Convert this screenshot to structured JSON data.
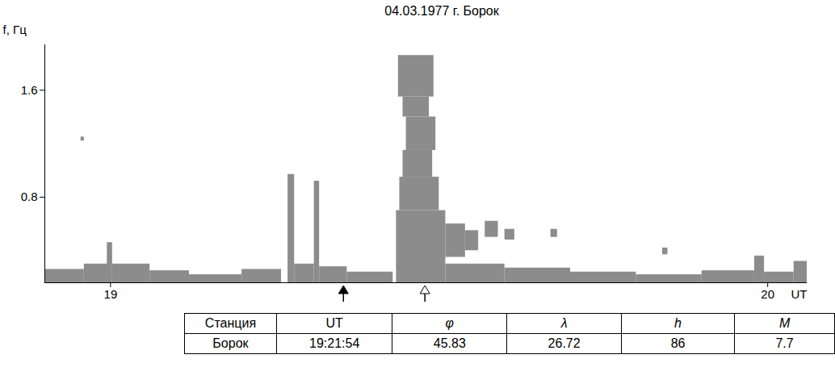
{
  "chart_data": {
    "type": "spectrogram",
    "title": "04.03.1977 г. Борок",
    "y_label": "f, Гц",
    "x_label": "UT",
    "xlim": [
      18.9,
      20.06
    ],
    "xticks": [
      19,
      20
    ],
    "ylim": [
      0.16,
      1.94
    ],
    "yticks": [
      0.8,
      1.6
    ],
    "color": "#8c8c8c",
    "cells": [
      [
        18.9,
        18.96,
        0.16,
        0.26
      ],
      [
        18.96,
        19.0,
        0.16,
        0.3
      ],
      [
        18.995,
        19.003,
        0.16,
        0.46
      ],
      [
        19.003,
        19.06,
        0.16,
        0.3
      ],
      [
        19.06,
        19.12,
        0.16,
        0.25
      ],
      [
        19.12,
        19.2,
        0.16,
        0.22
      ],
      [
        19.2,
        19.26,
        0.16,
        0.26
      ],
      [
        19.27,
        19.28,
        0.16,
        0.97
      ],
      [
        19.28,
        19.31,
        0.16,
        0.3
      ],
      [
        19.31,
        19.318,
        0.16,
        0.92
      ],
      [
        19.318,
        19.36,
        0.16,
        0.28
      ],
      [
        19.36,
        19.43,
        0.16,
        0.24
      ],
      [
        19.438,
        19.492,
        1.55,
        1.86
      ],
      [
        19.445,
        19.485,
        1.4,
        1.55
      ],
      [
        19.45,
        19.495,
        1.15,
        1.4
      ],
      [
        19.445,
        19.49,
        0.95,
        1.15
      ],
      [
        19.44,
        19.5,
        0.7,
        0.95
      ],
      [
        19.435,
        19.51,
        0.16,
        0.7
      ],
      [
        19.51,
        19.54,
        0.35,
        0.6
      ],
      [
        19.54,
        19.56,
        0.4,
        0.55
      ],
      [
        19.57,
        19.59,
        0.5,
        0.62
      ],
      [
        19.6,
        19.615,
        0.48,
        0.56
      ],
      [
        19.51,
        19.6,
        0.16,
        0.3
      ],
      [
        19.6,
        19.7,
        0.16,
        0.27
      ],
      [
        19.67,
        19.68,
        0.5,
        0.56
      ],
      [
        19.7,
        19.8,
        0.16,
        0.24
      ],
      [
        19.8,
        19.9,
        0.16,
        0.22
      ],
      [
        19.84,
        19.848,
        0.37,
        0.42
      ],
      [
        19.9,
        19.98,
        0.16,
        0.25
      ],
      [
        19.98,
        19.995,
        0.16,
        0.36
      ],
      [
        19.995,
        20.04,
        0.16,
        0.24
      ],
      [
        20.04,
        20.06,
        0.16,
        0.32
      ],
      [
        18.955,
        18.96,
        1.22,
        1.25
      ]
    ],
    "arrows": [
      {
        "x": 19.355,
        "color": "#000000"
      },
      {
        "x": 19.479,
        "color": "#ffffff"
      }
    ]
  },
  "table": {
    "header": [
      "Станция",
      "UT",
      "φ",
      "λ",
      "h",
      "M"
    ],
    "rows": [
      [
        "Борок",
        "19:21:54",
        "45.83",
        "26.72",
        "86",
        "7.7"
      ]
    ]
  }
}
